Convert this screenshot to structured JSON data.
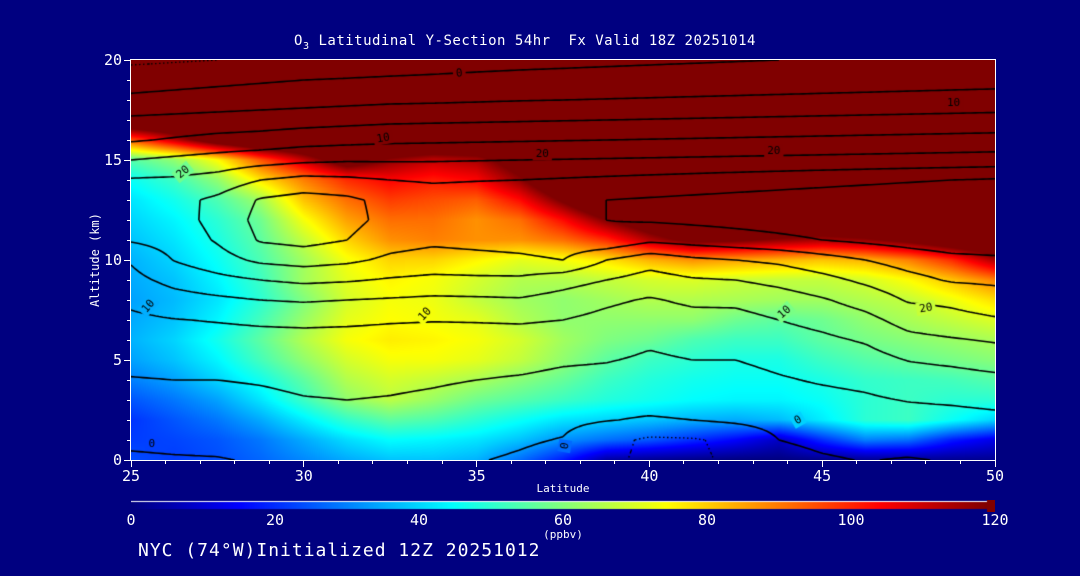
{
  "title": {
    "o": "O",
    "sub": "3",
    "rest": " Latitudinal Y-Section 54hr  Fx Valid 18Z 20251014"
  },
  "footer": "NYC (74°W)Initialized 12Z 20251012",
  "axes": {
    "x": {
      "label": "Latitude",
      "min": 25,
      "max": 50,
      "major_ticks": [
        25,
        30,
        35,
        40,
        45,
        50
      ],
      "minor_step": 1
    },
    "y": {
      "label": "Altitude (km)",
      "min": 0,
      "max": 20,
      "major_ticks": [
        0,
        5,
        10,
        15,
        20
      ],
      "minor_step": 1
    }
  },
  "colorbar": {
    "label": "(ppbv)",
    "min": 0,
    "max": 120,
    "ticks": [
      0,
      20,
      40,
      60,
      80,
      100,
      120
    ],
    "colormap": "jet",
    "over_color": "#800000"
  },
  "colors": {
    "background": "#000080",
    "frame": "#ffffff",
    "text": "#ffffff",
    "contour": "#000000"
  },
  "chart_data": {
    "type": "heatmap",
    "title": "O3 Latitudinal Y-Section 54hr Fx Valid 18Z 20251014",
    "xlabel": "Latitude",
    "ylabel": "Altitude (km)",
    "value_units": "ppbv",
    "value_clip": [
      0,
      120
    ],
    "x_lat": [
      25,
      26.25,
      27.5,
      28.75,
      30,
      31.25,
      32.5,
      33.75,
      35,
      36.25,
      37.5,
      38.75,
      40,
      41.25,
      42.5,
      43.75,
      45,
      46.25,
      47.5,
      48.75,
      50
    ],
    "y_alt_top_down": [
      20,
      19,
      18,
      17,
      16,
      15,
      14,
      13,
      12,
      11,
      10,
      9,
      8,
      7,
      6,
      5,
      4,
      3,
      2,
      1,
      0
    ],
    "ozone_ppbv_rows_top_down": [
      [
        140,
        140,
        140,
        140,
        140,
        140,
        140,
        140,
        140,
        140,
        140,
        140,
        140,
        140,
        140,
        140,
        140,
        140,
        140,
        140,
        140
      ],
      [
        140,
        140,
        140,
        140,
        140,
        140,
        140,
        140,
        140,
        140,
        140,
        140,
        140,
        140,
        140,
        140,
        140,
        140,
        140,
        140,
        140
      ],
      [
        140,
        140,
        140,
        140,
        140,
        140,
        140,
        140,
        140,
        140,
        140,
        140,
        140,
        140,
        140,
        140,
        140,
        140,
        140,
        140,
        140
      ],
      [
        140,
        140,
        140,
        140,
        140,
        140,
        140,
        140,
        140,
        140,
        140,
        140,
        140,
        140,
        140,
        140,
        140,
        140,
        140,
        140,
        140
      ],
      [
        95,
        112,
        130,
        140,
        140,
        140,
        140,
        140,
        140,
        140,
        140,
        140,
        140,
        140,
        140,
        140,
        140,
        140,
        140,
        140,
        140
      ],
      [
        55,
        62,
        75,
        95,
        112,
        130,
        118,
        112,
        115,
        128,
        140,
        140,
        140,
        140,
        140,
        140,
        140,
        140,
        140,
        140,
        140
      ],
      [
        46,
        52,
        62,
        78,
        90,
        100,
        105,
        102,
        105,
        118,
        138,
        140,
        140,
        140,
        140,
        140,
        140,
        140,
        140,
        140,
        140
      ],
      [
        42,
        47,
        54,
        64,
        82,
        92,
        98,
        96,
        94,
        104,
        122,
        140,
        140,
        140,
        140,
        140,
        140,
        140,
        140,
        140,
        140
      ],
      [
        40,
        44,
        50,
        58,
        74,
        86,
        92,
        92,
        88,
        92,
        104,
        120,
        131,
        140,
        140,
        140,
        140,
        140,
        140,
        140,
        140
      ],
      [
        38,
        42,
        48,
        56,
        68,
        80,
        88,
        90,
        88,
        88,
        92,
        100,
        114,
        124,
        122,
        118,
        115,
        118,
        124,
        132,
        138
      ],
      [
        36,
        40,
        46,
        54,
        64,
        74,
        80,
        80,
        76,
        72,
        74,
        78,
        84,
        88,
        86,
        84,
        82,
        84,
        90,
        100,
        115
      ],
      [
        35,
        38,
        44,
        52,
        64,
        72,
        76,
        74,
        70,
        66,
        66,
        68,
        70,
        71,
        69,
        68,
        68,
        70,
        75,
        82,
        90
      ],
      [
        34,
        37,
        42,
        50,
        60,
        70,
        74,
        73,
        68,
        64,
        62,
        64,
        66,
        66,
        65,
        64,
        64,
        66,
        68,
        73,
        79
      ],
      [
        35,
        38,
        44,
        53,
        63,
        72,
        75,
        74,
        72,
        66,
        62,
        62,
        62,
        62,
        58,
        56,
        58,
        62,
        65,
        68,
        71
      ],
      [
        36,
        40,
        47,
        56,
        66,
        74,
        77,
        76,
        74,
        70,
        64,
        60,
        58,
        54,
        52,
        52,
        56,
        59,
        61,
        63,
        65
      ],
      [
        34,
        38,
        44,
        53,
        62,
        70,
        74,
        74,
        72,
        68,
        62,
        56,
        52,
        50,
        48,
        48,
        52,
        55,
        57,
        59,
        61
      ],
      [
        30,
        34,
        40,
        47,
        56,
        66,
        70,
        68,
        65,
        61,
        57,
        52,
        49,
        47,
        46,
        46,
        48,
        51,
        52,
        53,
        55
      ],
      [
        25,
        29,
        34,
        42,
        52,
        62,
        67,
        63,
        58,
        55,
        52,
        49,
        47,
        45,
        44,
        44,
        46,
        50,
        52,
        50,
        50
      ],
      [
        21,
        25,
        29,
        35,
        43,
        51,
        56,
        54,
        50,
        46,
        42,
        40,
        38,
        36,
        35,
        37,
        43,
        50,
        52,
        46,
        40
      ],
      [
        22,
        23,
        25,
        29,
        35,
        41,
        45,
        44,
        42,
        38,
        32,
        28,
        25,
        20,
        15,
        8,
        20,
        30,
        28,
        18,
        12
      ],
      [
        24,
        22,
        24,
        27,
        31,
        35,
        38,
        38,
        36,
        28,
        18,
        4,
        2,
        1,
        0,
        0,
        1,
        2,
        2,
        2,
        2
      ]
    ],
    "overlay_contours": {
      "levels_solid": [
        0,
        5,
        10,
        15,
        20,
        25,
        30
      ],
      "levels_dotted": [
        -5
      ],
      "values_rows_top_down": [
        [
          -6,
          -5.5,
          -5,
          -4,
          -3.5,
          -3,
          -2.5,
          -2,
          -1.5,
          -1.2,
          -1,
          -0.8,
          -0.6,
          -0.4,
          -0.2,
          0,
          0.2,
          0.4,
          0.6,
          0.8,
          1
        ],
        [
          -2,
          -1.5,
          -1,
          -0.5,
          0,
          0.3,
          0.6,
          0.8,
          1,
          1.2,
          1.4,
          1.6,
          1.8,
          2,
          2.2,
          2.4,
          2.6,
          2.8,
          3,
          3.2,
          3.4
        ],
        [
          1,
          1.5,
          2,
          2.5,
          3,
          3.5,
          4,
          4.2,
          4.5,
          4.8,
          5,
          5.2,
          5.4,
          5.6,
          5.8,
          6,
          6.2,
          6.4,
          6.6,
          6.8,
          7
        ],
        [
          6,
          6.5,
          7,
          7.5,
          8,
          8.5,
          9,
          9.2,
          9.4,
          9.6,
          9.8,
          10,
          10.2,
          10.4,
          10.6,
          10.8,
          11,
          11.2,
          11.4,
          11.6,
          11.8
        ],
        [
          9.5,
          10.5,
          11.5,
          12,
          13,
          13.5,
          14,
          14.2,
          14.4,
          14.6,
          14.8,
          15,
          15.2,
          15.4,
          15.6,
          15.8,
          16,
          16.2,
          16.4,
          16.6,
          16.8
        ],
        [
          15,
          16,
          17,
          18,
          19,
          19.5,
          19.5,
          19.6,
          19.8,
          20,
          20.2,
          20.4,
          20.6,
          20.8,
          21,
          21.2,
          21.4,
          21.6,
          21.8,
          22,
          22.2
        ],
        [
          20.5,
          20.8,
          22,
          25,
          26.5,
          26,
          25,
          24.5,
          24.8,
          25,
          25.5,
          26,
          26.5,
          27,
          27.5,
          28,
          28.5,
          29,
          29.5,
          30,
          30.5
        ],
        [
          22,
          23.5,
          26,
          30.5,
          32,
          31,
          28.5,
          27.5,
          27.8,
          28.5,
          29.5,
          30,
          30.5,
          31,
          31.5,
          32,
          32.5,
          33,
          33.5,
          34,
          34.5
        ],
        [
          21.5,
          23,
          26.5,
          31.5,
          33,
          31.5,
          28.5,
          27.5,
          27.8,
          28.5,
          29.5,
          30,
          30.5,
          31,
          31.5,
          32,
          32.5,
          33,
          33.5,
          34,
          34.5
        ],
        [
          20.5,
          22,
          25.5,
          30.5,
          31.5,
          30,
          27,
          26,
          26.5,
          27,
          28,
          29,
          26,
          27,
          28,
          29,
          30,
          31,
          32,
          33,
          33.5
        ],
        [
          15.5,
          20.2,
          23,
          26,
          27,
          26,
          24,
          23,
          23.5,
          24,
          25,
          20,
          17,
          19,
          20,
          21,
          23,
          25,
          27,
          28.5,
          29
        ],
        [
          13.5,
          16.5,
          18.5,
          20,
          21,
          20.5,
          19.5,
          18.8,
          19,
          19,
          17,
          15,
          13,
          14.5,
          15,
          16.5,
          18.5,
          21,
          23.5,
          25.5,
          26
        ],
        [
          11,
          13,
          14,
          15,
          15.5,
          15,
          14.5,
          14,
          14.2,
          14.5,
          13,
          11,
          9.5,
          11,
          11,
          12.5,
          14.5,
          17,
          20.5,
          21,
          22.5
        ],
        [
          9,
          9.8,
          10.3,
          10.8,
          11,
          10.8,
          10.4,
          10.2,
          10.3,
          10.5,
          10,
          8.5,
          7,
          8.2,
          8.5,
          10,
          11.5,
          13.5,
          17,
          18.5,
          19.5
        ],
        [
          7.5,
          7.8,
          8,
          8.3,
          8.5,
          8.4,
          8.2,
          8,
          8,
          8,
          7.5,
          6.5,
          5.5,
          6.2,
          6.5,
          7.8,
          9,
          10.5,
          13.5,
          14.5,
          15.5
        ],
        [
          6,
          6.2,
          6.3,
          6.5,
          7,
          7,
          6.8,
          6.6,
          6.4,
          6.2,
          5.5,
          5.2,
          4.5,
          5,
          5,
          6,
          7,
          8,
          10.2,
          11,
          12
        ],
        [
          4.8,
          5,
          5,
          5.3,
          5.8,
          5.9,
          5.7,
          5.4,
          5,
          4.6,
          4,
          3.8,
          3.2,
          3.8,
          3.6,
          4.6,
          5.4,
          6,
          7.4,
          8,
          8.8
        ],
        [
          3.5,
          3.8,
          3.8,
          4.2,
          4.8,
          5,
          4.8,
          4.4,
          3.8,
          3.2,
          2.4,
          1.8,
          1.8,
          2.2,
          2.6,
          3.4,
          3.8,
          4.4,
          5.2,
          5.6,
          6.2
        ],
        [
          2.2,
          2.4,
          2.5,
          3,
          3.6,
          3.9,
          3.7,
          3.2,
          2.5,
          1.8,
          1,
          0.2,
          -0.5,
          0,
          0.8,
          1.6,
          2.2,
          2.8,
          3.2,
          3.4,
          3.8
        ],
        [
          0.6,
          0.8,
          1,
          1.6,
          2.2,
          2.6,
          2.4,
          1.8,
          1.2,
          0.5,
          -0.2,
          -3.5,
          -5.8,
          -5.5,
          -3.8,
          0,
          0.6,
          1,
          1.2,
          1.4,
          1.6
        ],
        [
          -0.5,
          -0.3,
          -0.2,
          0.3,
          0.8,
          1.2,
          1,
          0.6,
          0.2,
          -0.5,
          -1.5,
          -4,
          -6,
          -5.8,
          -4.2,
          -1,
          -0.3,
          0.1,
          -0.2,
          0.2,
          0.4
        ]
      ],
      "labels": [
        {
          "text": "0",
          "lat": 34.5,
          "alt": 19.35,
          "angle": -5
        },
        {
          "text": "10",
          "lat": 32.3,
          "alt": 16.1,
          "angle": -10
        },
        {
          "text": "10",
          "lat": 48.8,
          "alt": 17.85,
          "angle": 0
        },
        {
          "text": "20",
          "lat": 26.5,
          "alt": 14.4,
          "angle": -40
        },
        {
          "text": "20",
          "lat": 36.9,
          "alt": 15.3,
          "angle": 0
        },
        {
          "text": "20",
          "lat": 43.6,
          "alt": 15.45,
          "angle": 0
        },
        {
          "text": "10",
          "lat": 25.5,
          "alt": 7.7,
          "angle": -50
        },
        {
          "text": "10",
          "lat": 33.5,
          "alt": 7.3,
          "angle": -48
        },
        {
          "text": "10",
          "lat": 43.9,
          "alt": 7.4,
          "angle": -42
        },
        {
          "text": "20",
          "lat": 48.0,
          "alt": 7.6,
          "angle": -10
        },
        {
          "text": "0",
          "lat": 25.6,
          "alt": 0.8,
          "angle": 0
        },
        {
          "text": "0",
          "lat": 37.55,
          "alt": 0.7,
          "angle": -80
        },
        {
          "text": "0",
          "lat": 44.3,
          "alt": 2.0,
          "angle": -30
        }
      ]
    }
  }
}
